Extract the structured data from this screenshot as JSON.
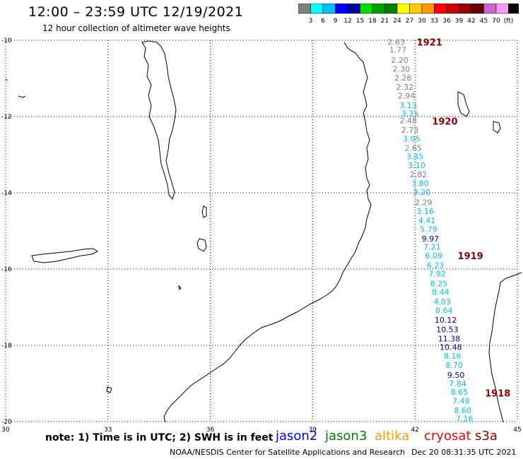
{
  "header": {
    "title": "12:00 – 23:59 UTC 12/19/2021",
    "subtitle": "12 hour collection of altimeter wave heights"
  },
  "colorbar": {
    "swatches": [
      "#808080",
      "#00ffff",
      "#00bfff",
      "#0000ff",
      "#0000a0",
      "#00e000",
      "#00a000",
      "#008000",
      "#ffff00",
      "#ffcc00",
      "#ff9900",
      "#ff0000",
      "#cc0000",
      "#990000",
      "#660000",
      "#cc66cc",
      "#ff99ff",
      "#000000"
    ],
    "labels": [
      "3",
      "6",
      "9",
      "12",
      "15",
      "18",
      "21",
      "24",
      "27",
      "30",
      "33",
      "36",
      "39",
      "42",
      "45",
      "70",
      "(ft)"
    ]
  },
  "axes": {
    "lat_labels": [
      "-10",
      "-12",
      "-14",
      "-16",
      "-18",
      "-20"
    ],
    "lon_labels": [
      "30",
      "33",
      "36",
      "39",
      "42",
      "45"
    ],
    "lat_range": [
      -20,
      -10
    ],
    "lon_range": [
      30,
      45
    ]
  },
  "observations": [
    {
      "value": "2.63",
      "lat": -10.05,
      "lon": 41.45,
      "color": "#808080"
    },
    {
      "value": "1.77",
      "lat": -10.25,
      "lon": 41.5,
      "color": "#808080"
    },
    {
      "value": "2.20",
      "lat": -10.52,
      "lon": 41.55,
      "color": "#808080"
    },
    {
      "value": "2.30",
      "lat": -10.75,
      "lon": 41.6,
      "color": "#808080"
    },
    {
      "value": "2.26",
      "lat": -10.98,
      "lon": 41.65,
      "color": "#808080"
    },
    {
      "value": "2.32",
      "lat": -11.22,
      "lon": 41.7,
      "color": "#808080"
    },
    {
      "value": "2.94",
      "lat": -11.45,
      "lon": 41.75,
      "color": "#808080"
    },
    {
      "value": "3.13",
      "lat": -11.7,
      "lon": 41.8,
      "color": "#00bfff"
    },
    {
      "value": "3.35",
      "lat": -11.92,
      "lon": 41.85,
      "color": "#00bfff"
    },
    {
      "value": "2.48",
      "lat": -12.1,
      "lon": 41.8,
      "color": "#808080"
    },
    {
      "value": "2.73",
      "lat": -12.35,
      "lon": 41.85,
      "color": "#808080"
    },
    {
      "value": "3.05",
      "lat": -12.58,
      "lon": 41.9,
      "color": "#00bfff"
    },
    {
      "value": "2.65",
      "lat": -12.82,
      "lon": 41.95,
      "color": "#808080"
    },
    {
      "value": "3.45",
      "lat": -13.05,
      "lon": 42.0,
      "color": "#00bfff"
    },
    {
      "value": "3.10",
      "lat": -13.28,
      "lon": 42.05,
      "color": "#00bfff"
    },
    {
      "value": "2.82",
      "lat": -13.52,
      "lon": 42.1,
      "color": "#808080"
    },
    {
      "value": "3.80",
      "lat": -13.75,
      "lon": 42.15,
      "color": "#00bfff"
    },
    {
      "value": "3.20",
      "lat": -13.98,
      "lon": 42.2,
      "color": "#00bfff"
    },
    {
      "value": "2.29",
      "lat": -14.25,
      "lon": 42.25,
      "color": "#808080"
    },
    {
      "value": "3.16",
      "lat": -14.48,
      "lon": 42.3,
      "color": "#00bfff"
    },
    {
      "value": "4.41",
      "lat": -14.72,
      "lon": 42.35,
      "color": "#00bfff"
    },
    {
      "value": "5.79",
      "lat": -14.95,
      "lon": 42.4,
      "color": "#00bfff"
    },
    {
      "value": "9.97",
      "lat": -15.2,
      "lon": 42.45,
      "color": "#00008b"
    },
    {
      "value": "7.21",
      "lat": -15.42,
      "lon": 42.5,
      "color": "#00bfff"
    },
    {
      "value": "6.09",
      "lat": -15.65,
      "lon": 42.55,
      "color": "#00bfff"
    },
    {
      "value": "6.23",
      "lat": -15.9,
      "lon": 42.6,
      "color": "#00bfff"
    },
    {
      "value": "7.92",
      "lat": -16.12,
      "lon": 42.65,
      "color": "#00bfff"
    },
    {
      "value": "8.25",
      "lat": -16.38,
      "lon": 42.7,
      "color": "#00bfff"
    },
    {
      "value": "8.44",
      "lat": -16.6,
      "lon": 42.75,
      "color": "#00bfff"
    },
    {
      "value": "4.03",
      "lat": -16.85,
      "lon": 42.8,
      "color": "#00bfff"
    },
    {
      "value": "8.64",
      "lat": -17.08,
      "lon": 42.85,
      "color": "#00bfff"
    },
    {
      "value": "10.12",
      "lat": -17.33,
      "lon": 42.9,
      "color": "#00008b"
    },
    {
      "value": "10.53",
      "lat": -17.58,
      "lon": 42.95,
      "color": "#00008b"
    },
    {
      "value": "11.38",
      "lat": -17.82,
      "lon": 43.0,
      "color": "#00008b"
    },
    {
      "value": "10.48",
      "lat": -18.05,
      "lon": 43.05,
      "color": "#00008b"
    },
    {
      "value": "8.16",
      "lat": -18.28,
      "lon": 43.1,
      "color": "#00bfff"
    },
    {
      "value": "8.70",
      "lat": -18.52,
      "lon": 43.15,
      "color": "#00bfff"
    },
    {
      "value": "9.50",
      "lat": -18.78,
      "lon": 43.2,
      "color": "#00008b"
    },
    {
      "value": "7.84",
      "lat": -19.0,
      "lon": 43.25,
      "color": "#00bfff"
    },
    {
      "value": "8.65",
      "lat": -19.22,
      "lon": 43.3,
      "color": "#00bfff"
    },
    {
      "value": "7.48",
      "lat": -19.45,
      "lon": 43.35,
      "color": "#00bfff"
    },
    {
      "value": "8.60",
      "lat": -19.7,
      "lon": 43.4,
      "color": "#00bfff"
    },
    {
      "value": "7.16",
      "lat": -19.92,
      "lon": 43.45,
      "color": "#00bfff"
    }
  ],
  "pass_labels": [
    {
      "text": "1921",
      "lat": -10.05,
      "lon": 42.05
    },
    {
      "text": "1920",
      "lat": -12.12,
      "lon": 42.5
    },
    {
      "text": "1919",
      "lat": -15.65,
      "lon": 43.25
    },
    {
      "text": "1918",
      "lat": -19.25,
      "lon": 44.05
    }
  ],
  "footer": {
    "note": "note: 1) Time is in UTC; 2) SWH is in feet",
    "satellites": [
      {
        "name": "jason2",
        "color": "#0000ff"
      },
      {
        "name": "jason3",
        "color": "#008000"
      },
      {
        "name": "altika",
        "color": "#ff9900"
      },
      {
        "name": "cryosat",
        "color": "#ff0000"
      },
      {
        "name": "s3a",
        "color": "#990000"
      }
    ],
    "credit": "NOAA/NESDIS Center for Satellite Applications and Research",
    "timestamp": "Dec 20 08:31:35 UTC 2021"
  }
}
